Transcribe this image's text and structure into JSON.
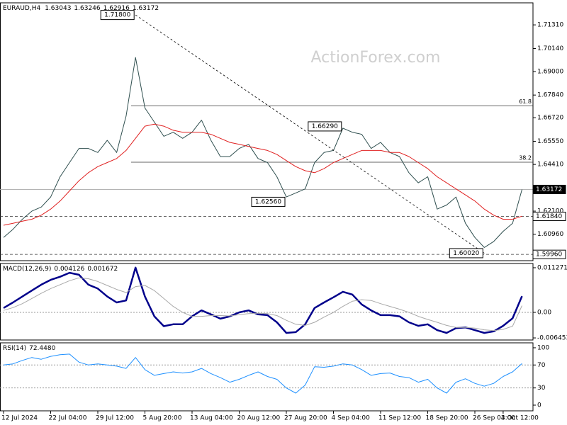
{
  "chart_data": [
    {
      "type": "line",
      "title": "EURAUD,H4",
      "ohlc": [
        1.63043,
        1.63246,
        1.62916,
        1.63172
      ],
      "watermark": "ActionForex.com",
      "categories": [
        "12 Jul 2024",
        null,
        null,
        null,
        null,
        "22 Jul 04:00",
        null,
        null,
        null,
        null,
        "29 Jul 12:00",
        null,
        null,
        null,
        null,
        "5 Aug 20:00",
        null,
        null,
        null,
        null,
        "13 Aug 04:00",
        null,
        null,
        null,
        null,
        "20 Aug 12:00",
        null,
        null,
        null,
        null,
        "27 Aug 20:00",
        null,
        null,
        null,
        null,
        "4 Sep 04:00",
        null,
        null,
        null,
        null,
        "11 Sep 12:00",
        null,
        null,
        null,
        null,
        "18 Sep 20:00",
        null,
        null,
        null,
        null,
        "26 Sep 04:00",
        null,
        null,
        "3 Oct 12:00",
        null,
        null
      ],
      "series": [
        {
          "color": "#2f4f4f",
          "width": 1,
          "values": [
            1.608,
            1.612,
            1.617,
            1.621,
            1.623,
            1.628,
            1.638,
            1.645,
            1.652,
            1.652,
            1.65,
            1.656,
            1.65,
            1.668,
            1.697,
            1.672,
            1.665,
            1.658,
            1.66,
            1.657,
            1.66,
            1.666,
            1.656,
            1.648,
            1.648,
            1.652,
            1.654,
            1.647,
            1.645,
            1.638,
            1.628,
            1.63,
            1.632,
            1.645,
            1.65,
            1.651,
            1.662,
            1.66,
            1.659,
            1.652,
            1.655,
            1.65,
            1.648,
            1.64,
            1.635,
            1.638,
            1.622,
            1.624,
            1.628,
            1.615,
            1.608,
            1.603,
            1.606,
            1.611,
            1.615,
            1.63172
          ]
        },
        {
          "color": "#e02020",
          "width": 1,
          "values": [
            1.614,
            1.615,
            1.616,
            1.617,
            1.619,
            1.622,
            1.626,
            1.631,
            1.636,
            1.64,
            1.643,
            1.645,
            1.647,
            1.651,
            1.657,
            1.663,
            1.664,
            1.663,
            1.661,
            1.66,
            1.66,
            1.66,
            1.659,
            1.657,
            1.655,
            1.654,
            1.653,
            1.652,
            1.651,
            1.649,
            1.646,
            1.643,
            1.641,
            1.64,
            1.642,
            1.645,
            1.647,
            1.649,
            1.651,
            1.651,
            1.651,
            1.65,
            1.65,
            1.648,
            1.645,
            1.642,
            1.638,
            1.635,
            1.632,
            1.629,
            1.626,
            1.622,
            1.619,
            1.617,
            1.617,
            1.6185
          ]
        }
      ],
      "ylim": [
        1.5965,
        1.724
      ],
      "yticks": [
        {
          "value": 1.7131,
          "label": "1.71310"
        },
        {
          "value": 1.7014,
          "label": "1.70140"
        },
        {
          "value": 1.69,
          "label": "1.69000"
        },
        {
          "value": 1.6784,
          "label": "1.67840"
        },
        {
          "value": 1.6672,
          "label": "1.66720"
        },
        {
          "value": 1.6555,
          "label": "1.65550"
        },
        {
          "value": 1.6441,
          "label": "1.64410"
        },
        {
          "value": 1.621,
          "label": "1.62100"
        },
        {
          "value": 1.6096,
          "label": "1.60960"
        }
      ],
      "fib_levels": [
        {
          "ratio": 61.8,
          "price": 1.673
        },
        {
          "ratio": 38.2,
          "price": 1.6452
        }
      ],
      "price_lines": [
        {
          "price": 1.63172,
          "dashed": false,
          "highlight": true
        },
        {
          "price": {
            "value": 1.6184,
            "label": "1.61840"
          },
          "dashed": true,
          "highlight": false
        },
        {
          "price": {
            "value": 1.5996,
            "label": "1.59960"
          },
          "dashed": true,
          "highlight": false
        }
      ],
      "annotations": [
        {
          "x": 14,
          "price": {
            "value": 1.718,
            "label": "1.71800"
          }
        },
        {
          "x": 36,
          "price": {
            "value": 1.6629,
            "label": "1.66290"
          }
        },
        {
          "x": 30,
          "price": {
            "value": 1.6256,
            "label": "1.62560"
          }
        },
        {
          "x": 51,
          "price": {
            "value": 1.6002,
            "label": "1.60020"
          }
        }
      ],
      "trendline": true
    },
    {
      "type": "line",
      "title": "MACD(12,26,9)",
      "readings": [
        0.004126,
        0.001672
      ],
      "series": [
        {
          "color": "#00008b",
          "width": 2.5,
          "values": [
            0.0011,
            0.0025,
            0.004,
            0.0055,
            0.007,
            0.0082,
            0.009,
            0.01,
            0.0095,
            0.007,
            0.006,
            0.004,
            0.0025,
            0.003,
            0.0113,
            0.004,
            -0.001,
            -0.0035,
            -0.003,
            -0.003,
            -0.001,
            0.0005,
            -0.0005,
            -0.0016,
            -0.001,
            0.0,
            0.0005,
            -0.0005,
            -0.0007,
            -0.0025,
            -0.0052,
            -0.005,
            -0.003,
            0.0011,
            0.0025,
            0.0038,
            0.0052,
            0.0045,
            0.002,
            0.0005,
            -0.0007,
            -0.0007,
            -0.001,
            -0.0025,
            -0.0034,
            -0.003,
            -0.0045,
            -0.0052,
            -0.004,
            -0.0038,
            -0.0045,
            -0.0052,
            -0.0048,
            -0.0034,
            -0.0015,
            0.0041
          ]
        },
        {
          "color": "#a9a9a9",
          "width": 1,
          "values": [
            0.0005,
            0.0012,
            0.0022,
            0.0035,
            0.0048,
            0.006,
            0.007,
            0.008,
            0.0087,
            0.0085,
            0.0078,
            0.0068,
            0.0058,
            0.005,
            0.0065,
            0.0068,
            0.0055,
            0.0035,
            0.0015,
            0.0,
            -0.001,
            -0.001,
            -0.0008,
            -0.0008,
            -0.0009,
            -0.0006,
            -0.0003,
            -0.0002,
            -0.0003,
            -0.0008,
            -0.002,
            -0.003,
            -0.0033,
            -0.0025,
            -0.0012,
            0.0,
            0.0015,
            0.0028,
            0.0032,
            0.003,
            0.0022,
            0.0015,
            0.0008,
            0.0,
            -0.001,
            -0.0018,
            -0.0025,
            -0.0033,
            -0.0038,
            -0.0038,
            -0.004,
            -0.0044,
            -0.0046,
            -0.0043,
            -0.0035,
            0.0017
          ]
        }
      ],
      "ylim": [
        -0.00698,
        0.01234
      ],
      "yticks": [
        0.011271,
        {
          "value": 0,
          "label": "0.00"
        },
        -0.006453
      ],
      "levels": [
        0
      ]
    },
    {
      "type": "line",
      "title": "RSI(14)",
      "reading": {
        "value": 72.448,
        "label": "72.4480"
      },
      "series": [
        {
          "color": "#1e90ff",
          "width": 1,
          "values": [
            70,
            72,
            78,
            83,
            80,
            85,
            88,
            89,
            75,
            70,
            72,
            70,
            68,
            64,
            83,
            62,
            52,
            55,
            58,
            56,
            58,
            64,
            55,
            48,
            40,
            45,
            52,
            58,
            50,
            45,
            30,
            21,
            35,
            67,
            66,
            68,
            72,
            70,
            62,
            52,
            55,
            56,
            50,
            48,
            40,
            45,
            30,
            21,
            40,
            46,
            38,
            33,
            38,
            50,
            58,
            72.448
          ]
        }
      ],
      "ylim": [
        -9.9,
        108.6
      ],
      "yticks": [
        100,
        70,
        30,
        0
      ],
      "levels": [
        70,
        30
      ]
    }
  ]
}
